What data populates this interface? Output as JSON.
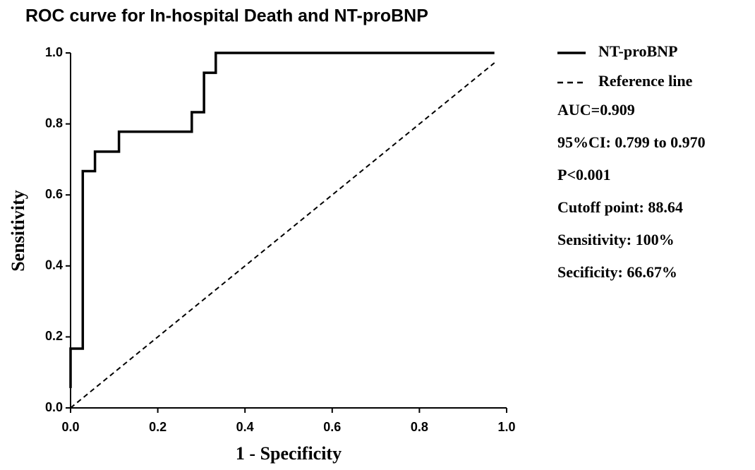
{
  "chart_data": {
    "type": "line",
    "title": "ROC curve for In-hospital Death and NT-proBNP",
    "x_label": "1 - Specificity",
    "y_label": "Sensitivity",
    "xlim": [
      0,
      1
    ],
    "ylim": [
      0,
      1
    ],
    "xticks": [
      {
        "value": 0,
        "label": "0.0"
      },
      0.2,
      0.4,
      0.6,
      0.8,
      {
        "value": 1,
        "label": "1.0"
      }
    ],
    "yticks": [
      {
        "value": 0,
        "label": "0.0"
      },
      0.2,
      0.4,
      0.6,
      0.8,
      {
        "value": 1,
        "label": "1.0"
      }
    ],
    "grid": false,
    "legend": "right",
    "series": [
      {
        "name": "NT-proBNP",
        "color": "#000000",
        "style": "solid",
        "x": [
          0,
          0,
          0.028,
          0.028,
          0.056,
          0.056,
          0.111,
          0.111,
          0.278,
          0.278,
          0.306,
          0.306,
          0.333,
          0.333,
          0.972
        ],
        "values": [
          0.056,
          0.167,
          0.167,
          0.667,
          0.667,
          0.722,
          0.722,
          0.778,
          0.778,
          0.833,
          0.833,
          0.944,
          0.944,
          1,
          1
        ]
      },
      {
        "name": "Reference line",
        "color": "#000000",
        "style": "dashed",
        "x": [
          0,
          0.972
        ],
        "values": [
          0,
          0.972
        ]
      }
    ],
    "annotations": [
      "AUC=0.909",
      "95%CI: 0.799 to 0.970",
      "P<0.001",
      "Cutoff point: 88.64",
      "Sensitivity: 100%",
      "Secificity: 66.67%"
    ]
  }
}
